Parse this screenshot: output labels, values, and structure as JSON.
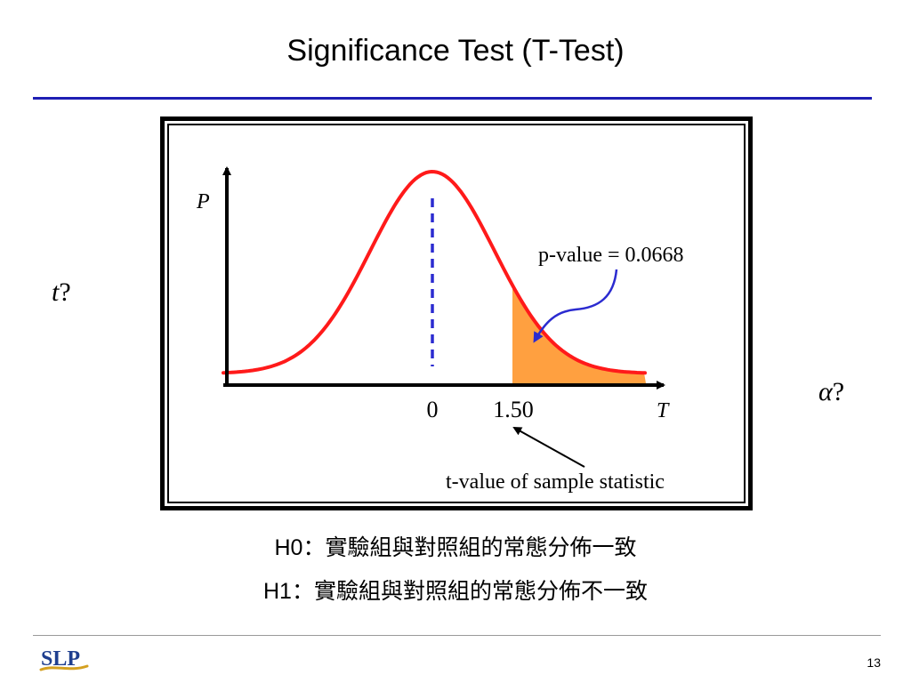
{
  "slide": {
    "title": "Significance Test (T-Test)",
    "page_number": "13"
  },
  "side_labels": {
    "t_symbol": "t",
    "alpha_symbol": "α",
    "question_mark": "?"
  },
  "figure": {
    "y_axis_label": "P",
    "x_axis_label": "T",
    "tick_zero": "0",
    "tick_value": "1.50",
    "p_value_annotation": "p-value = 0.0668",
    "t_value_annotation": "t-value of sample statistic",
    "colors": {
      "curve": "#ff1a1a",
      "tail_fill": "#ffa040",
      "mean_line": "#2b2bd0",
      "p_arrow": "#2b2bd0",
      "axes": "#000000"
    }
  },
  "hypotheses": {
    "h0_label": "H0",
    "h0_text": "：實驗組與對照組的常態分佈一致",
    "h1_label": "H1",
    "h1_text": "：實驗組與對照組的常態分佈不一致"
  },
  "footer": {
    "logo_text": "SLP",
    "logo_colors": {
      "letters": "#1f3f8f",
      "swoosh": "#d4a020"
    }
  }
}
